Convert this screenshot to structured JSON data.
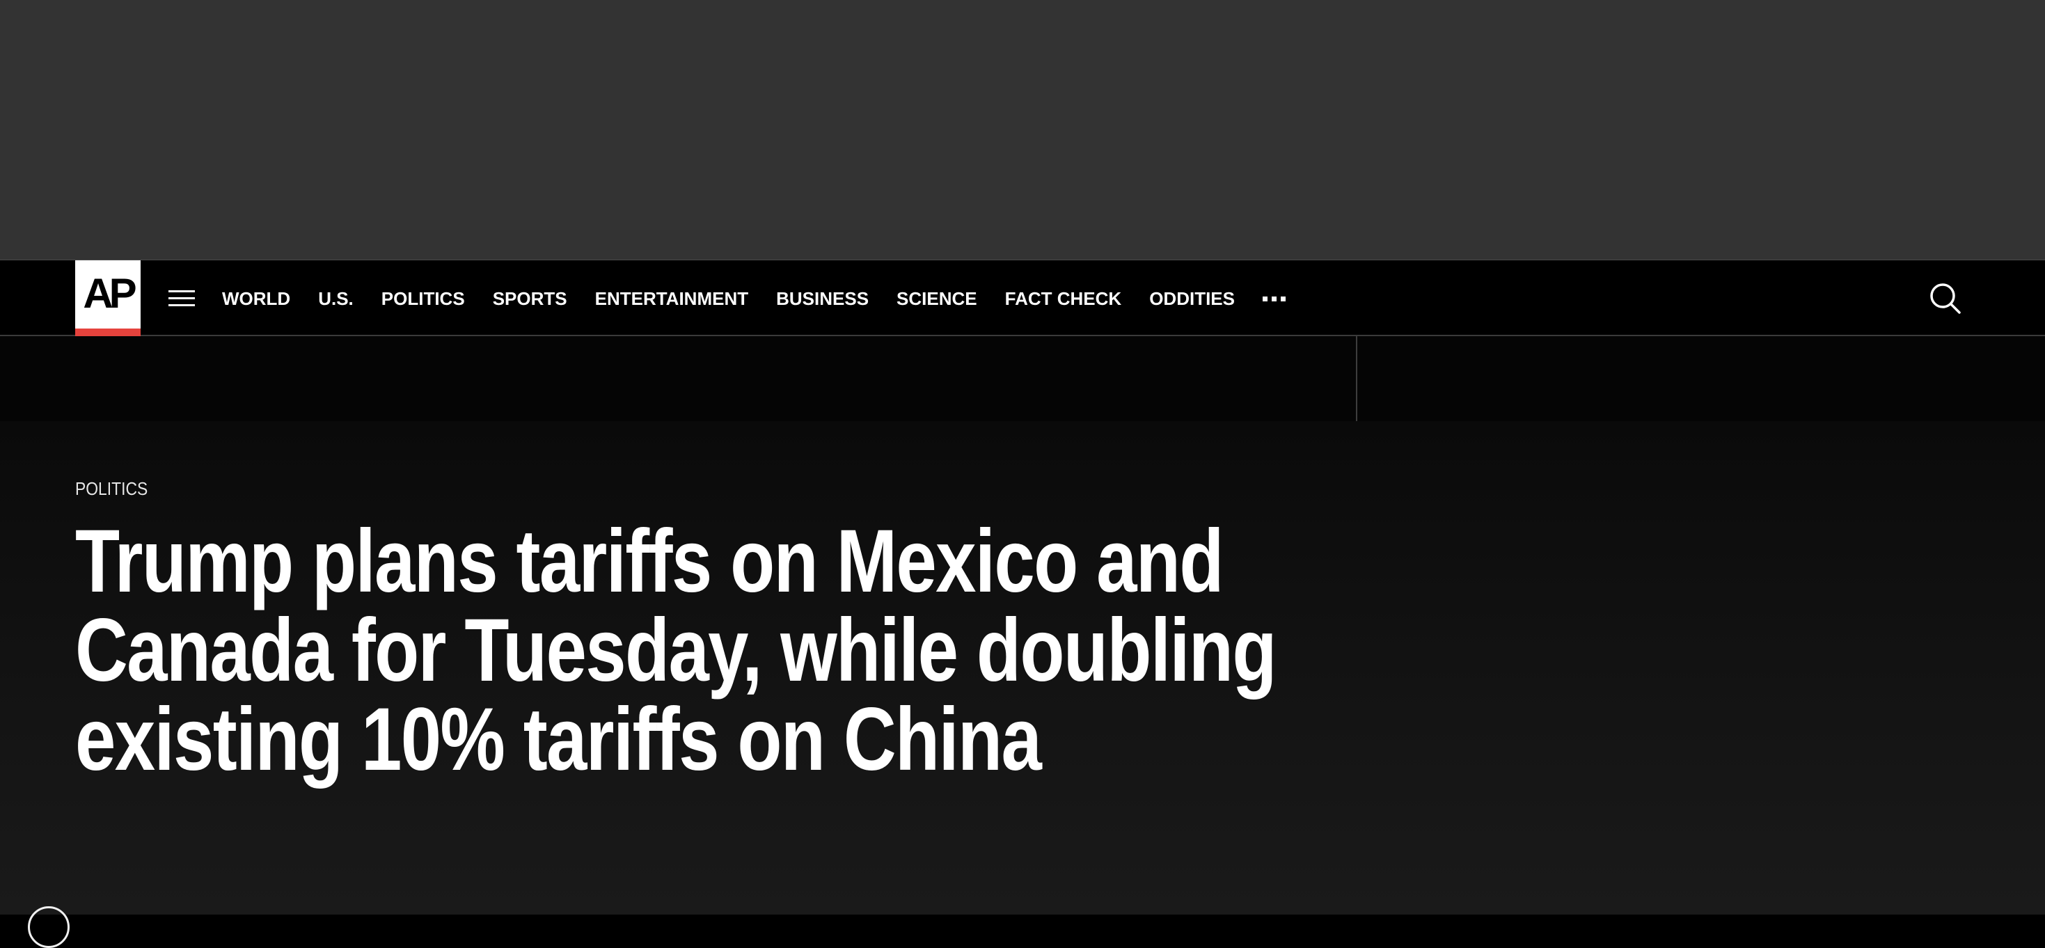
{
  "brand": {
    "logo_text": "AP",
    "accent_color": "#e5433d"
  },
  "nav": {
    "menu_icon": "hamburger-menu-icon",
    "items": [
      {
        "label": "WORLD"
      },
      {
        "label": "U.S."
      },
      {
        "label": "POLITICS"
      },
      {
        "label": "SPORTS"
      },
      {
        "label": "ENTERTAINMENT"
      },
      {
        "label": "BUSINESS"
      },
      {
        "label": "SCIENCE"
      },
      {
        "label": "FACT CHECK"
      },
      {
        "label": "ODDITIES"
      }
    ],
    "more_icon": "more-dots-icon",
    "search_icon": "search-icon"
  },
  "article": {
    "category": "POLITICS",
    "headline_lines": [
      "Trump plans tariffs on Mexico and",
      "Canada for Tuesday, while doubling",
      "existing 10% tariffs on China"
    ]
  }
}
